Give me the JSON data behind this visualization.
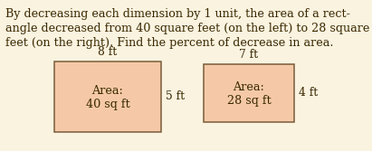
{
  "background_color": "#faf3e0",
  "rect_fill_color": "#f5c9a8",
  "rect_edge_color": "#7a5c3a",
  "text_color": "#3a2800",
  "paragraph_lines": [
    "By decreasing each dimension by 1 unit, the area of a rect-",
    "angle decreased from 40 square feet (on the left) to 28 square",
    "feet (on the right). Find the percent of decrease in area."
  ],
  "rect1": {
    "label_top": "8 ft",
    "label_right": "5 ft",
    "area_line1": "Area:",
    "area_line2": "40 sq ft"
  },
  "rect2": {
    "label_top": "7 ft",
    "label_right": "4 ft",
    "area_line1": "Area:",
    "area_line2": "28 sq ft"
  },
  "font_size_paragraph": 9.2,
  "font_size_labels": 8.8,
  "font_size_area": 9.2
}
